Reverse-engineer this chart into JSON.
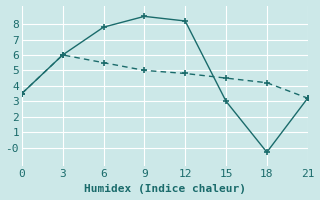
{
  "line1_x": [
    0,
    3,
    6,
    9,
    12,
    15,
    18,
    21
  ],
  "line1_y": [
    3.5,
    6.0,
    7.8,
    8.5,
    8.2,
    3.0,
    -0.3,
    3.2
  ],
  "line2_x": [
    0,
    3,
    6,
    9,
    12,
    15,
    18,
    21
  ],
  "line2_y": [
    3.5,
    6.0,
    5.5,
    5.0,
    4.8,
    4.5,
    4.2,
    3.2
  ],
  "line_color": "#1a6b6b",
  "bg_color": "#cce8e8",
  "grid_color": "#ffffff",
  "xlabel": "Humidex (Indice chaleur)",
  "xlim": [
    0,
    21
  ],
  "ylim": [
    -1.2,
    9.2
  ],
  "xticks": [
    0,
    3,
    6,
    9,
    12,
    15,
    18,
    21
  ],
  "yticks": [
    0,
    1,
    2,
    3,
    4,
    5,
    6,
    7,
    8
  ],
  "ytick_labels": [
    "-0",
    "1",
    "2",
    "3",
    "4",
    "5",
    "6",
    "7",
    "8"
  ],
  "font_size": 8,
  "font_family": "monospace"
}
